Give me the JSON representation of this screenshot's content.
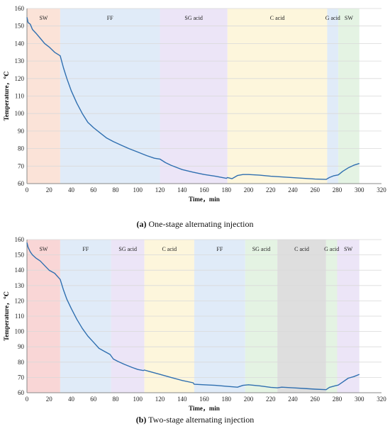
{
  "chart_data": [
    {
      "type": "line",
      "caption_letter": "(a)",
      "caption_text": " One-stage alternating injection",
      "xlabel": "Time，min",
      "ylabel": "Temperature，℃",
      "xlim": [
        0,
        320
      ],
      "ylim": [
        60,
        160
      ],
      "xticks": [
        0,
        20,
        40,
        60,
        80,
        100,
        120,
        140,
        160,
        180,
        200,
        220,
        240,
        260,
        280,
        300,
        320
      ],
      "yticks": [
        60,
        70,
        80,
        90,
        100,
        110,
        120,
        130,
        140,
        150,
        160
      ],
      "line_color": "#2f6fb0",
      "phases": [
        {
          "label": "SW",
          "start": 0,
          "end": 30,
          "color": "#fbe3d8"
        },
        {
          "label": "FF",
          "start": 30,
          "end": 120,
          "color": "#e0ebf8"
        },
        {
          "label": "SG acid",
          "start": 120,
          "end": 181,
          "color": "#ece5f7"
        },
        {
          "label": "C acid",
          "start": 181,
          "end": 271,
          "color": "#fdf6dc"
        },
        {
          "label": "G acid",
          "start": 271,
          "end": 281,
          "color": "#e0ebf8"
        },
        {
          "label": "SW",
          "start": 281,
          "end": 300,
          "color": "#e4f3e3"
        }
      ],
      "series": [
        {
          "x": [
            0,
            1,
            3,
            5,
            8,
            12,
            16,
            20,
            25,
            30,
            33,
            36,
            40,
            45,
            50,
            55,
            60,
            66,
            72,
            78,
            85,
            92,
            100,
            108,
            115,
            120,
            125,
            130,
            140,
            150,
            160,
            170,
            180,
            181,
            185,
            190,
            195,
            200,
            210,
            220,
            230,
            240,
            250,
            260,
            270,
            273,
            277,
            281,
            285,
            290,
            295,
            300
          ],
          "y": [
            155,
            152,
            151,
            148,
            146,
            143,
            140,
            138,
            135,
            133,
            126,
            120,
            113,
            106,
            100,
            95,
            92,
            89,
            86,
            84,
            82,
            80,
            78,
            76,
            74.5,
            74,
            72,
            70.5,
            68,
            66.5,
            65.2,
            64.2,
            63,
            63.5,
            62.8,
            64.6,
            65.2,
            65.2,
            64.8,
            64.2,
            63.8,
            63.4,
            63,
            62.6,
            62.4,
            63.5,
            64.5,
            65,
            67,
            69,
            70.5,
            71.5
          ]
        }
      ]
    },
    {
      "type": "line",
      "caption_letter": "(b)",
      "caption_text": " Two-stage alternating injection",
      "xlabel": "Time，min",
      "ylabel": "Temperature，℃",
      "xlim": [
        0,
        320
      ],
      "ylim": [
        60,
        160
      ],
      "xticks": [
        0,
        20,
        40,
        60,
        80,
        100,
        120,
        140,
        160,
        180,
        200,
        220,
        240,
        260,
        280,
        300,
        320
      ],
      "yticks": [
        60,
        70,
        80,
        90,
        100,
        110,
        120,
        130,
        140,
        150,
        160
      ],
      "line_color": "#2f6fb0",
      "phases": [
        {
          "label": "SW",
          "start": 0,
          "end": 30,
          "color": "#f9d6d6"
        },
        {
          "label": "FF",
          "start": 30,
          "end": 76,
          "color": "#e0ebf8"
        },
        {
          "label": "SG acid",
          "start": 76,
          "end": 106,
          "color": "#ece5f7"
        },
        {
          "label": "C acid",
          "start": 106,
          "end": 151,
          "color": "#fdf6dc"
        },
        {
          "label": "FF",
          "start": 151,
          "end": 197,
          "color": "#e0ebf8"
        },
        {
          "label": "SG acid",
          "start": 197,
          "end": 226,
          "color": "#e4f3e3"
        },
        {
          "label": "C acid",
          "start": 226,
          "end": 270,
          "color": "#dedede"
        },
        {
          "label": "G acid",
          "start": 270,
          "end": 280,
          "color": "#e4f3e3"
        },
        {
          "label": "SW",
          "start": 280,
          "end": 300,
          "color": "#ece5f7"
        }
      ],
      "series": [
        {
          "x": [
            0,
            1,
            3,
            5,
            8,
            12,
            16,
            20,
            25,
            30,
            33,
            36,
            40,
            45,
            50,
            55,
            60,
            65,
            70,
            75,
            78,
            82,
            88,
            95,
            100,
            105,
            106,
            110,
            115,
            120,
            130,
            140,
            150,
            151,
            160,
            170,
            180,
            190,
            195,
            200,
            210,
            220,
            226,
            230,
            240,
            250,
            260,
            270,
            273,
            278,
            281,
            285,
            290,
            295,
            300
          ],
          "y": [
            158,
            155,
            152,
            150,
            148,
            146,
            143,
            140,
            138,
            134,
            127,
            121,
            115,
            108,
            102,
            97,
            93,
            89,
            87,
            85,
            82,
            80.5,
            78.5,
            76.5,
            75.2,
            74.5,
            74.8,
            74,
            73,
            72,
            70,
            68,
            66.5,
            65.5,
            65.2,
            64.8,
            64.2,
            63.6,
            64.8,
            65.2,
            64.5,
            63.5,
            63.2,
            63.6,
            63.2,
            62.8,
            62.3,
            62,
            63.5,
            64.5,
            65,
            67,
            69.5,
            70.5,
            72
          ]
        }
      ]
    }
  ]
}
